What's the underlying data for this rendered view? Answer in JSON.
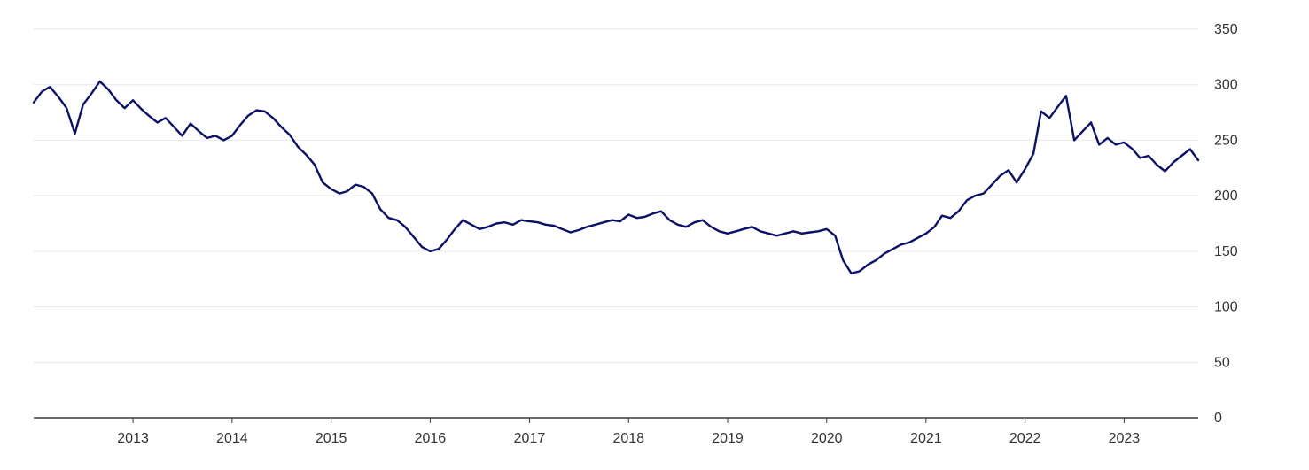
{
  "chart_data": {
    "type": "line",
    "title": "",
    "xlabel": "",
    "ylabel": "",
    "x_range": [
      "2012-01-01",
      "2023-10-01"
    ],
    "ylim": [
      0,
      350
    ],
    "y_ticks": [
      0,
      50,
      100,
      150,
      200,
      250,
      300,
      350
    ],
    "x_ticks": [
      "2013",
      "2014",
      "2015",
      "2016",
      "2017",
      "2018",
      "2019",
      "2020",
      "2021",
      "2022",
      "2023"
    ],
    "grid": "horizontal",
    "y_axis_side": "right",
    "line_color": "#0b1166",
    "series": [
      {
        "points": [
          [
            "2012-01-01",
            284
          ],
          [
            "2012-02-01",
            294
          ],
          [
            "2012-03-01",
            298
          ],
          [
            "2012-04-01",
            289
          ],
          [
            "2012-05-01",
            279
          ],
          [
            "2012-06-01",
            256
          ],
          [
            "2012-07-01",
            282
          ],
          [
            "2012-08-01",
            292
          ],
          [
            "2012-09-01",
            303
          ],
          [
            "2012-10-01",
            296
          ],
          [
            "2012-11-01",
            286
          ],
          [
            "2012-12-01",
            279
          ],
          [
            "2013-01-01",
            286
          ],
          [
            "2013-02-01",
            278
          ],
          [
            "2013-03-01",
            272
          ],
          [
            "2013-04-01",
            266
          ],
          [
            "2013-05-01",
            270
          ],
          [
            "2013-06-01",
            262
          ],
          [
            "2013-07-01",
            254
          ],
          [
            "2013-08-01",
            265
          ],
          [
            "2013-09-01",
            258
          ],
          [
            "2013-10-01",
            252
          ],
          [
            "2013-11-01",
            254
          ],
          [
            "2013-12-01",
            250
          ],
          [
            "2014-01-01",
            254
          ],
          [
            "2014-02-01",
            264
          ],
          [
            "2014-03-01",
            272
          ],
          [
            "2014-04-01",
            277
          ],
          [
            "2014-05-01",
            276
          ],
          [
            "2014-06-01",
            270
          ],
          [
            "2014-07-01",
            262
          ],
          [
            "2014-08-01",
            255
          ],
          [
            "2014-09-01",
            244
          ],
          [
            "2014-10-01",
            237
          ],
          [
            "2014-11-01",
            228
          ],
          [
            "2014-12-01",
            212
          ],
          [
            "2015-01-01",
            206
          ],
          [
            "2015-02-01",
            202
          ],
          [
            "2015-03-01",
            204
          ],
          [
            "2015-04-01",
            210
          ],
          [
            "2015-05-01",
            208
          ],
          [
            "2015-06-01",
            202
          ],
          [
            "2015-07-01",
            188
          ],
          [
            "2015-08-01",
            180
          ],
          [
            "2015-09-01",
            178
          ],
          [
            "2015-10-01",
            172
          ],
          [
            "2015-11-01",
            163
          ],
          [
            "2015-12-01",
            154
          ],
          [
            "2016-01-01",
            150
          ],
          [
            "2016-02-01",
            152
          ],
          [
            "2016-03-01",
            160
          ],
          [
            "2016-04-01",
            170
          ],
          [
            "2016-05-01",
            178
          ],
          [
            "2016-06-01",
            174
          ],
          [
            "2016-07-01",
            170
          ],
          [
            "2016-08-01",
            172
          ],
          [
            "2016-09-01",
            175
          ],
          [
            "2016-10-01",
            176
          ],
          [
            "2016-11-01",
            174
          ],
          [
            "2016-12-01",
            178
          ],
          [
            "2017-01-01",
            177
          ],
          [
            "2017-02-01",
            176
          ],
          [
            "2017-03-01",
            174
          ],
          [
            "2017-04-01",
            173
          ],
          [
            "2017-05-01",
            170
          ],
          [
            "2017-06-01",
            167
          ],
          [
            "2017-07-01",
            169
          ],
          [
            "2017-08-01",
            172
          ],
          [
            "2017-09-01",
            174
          ],
          [
            "2017-10-01",
            176
          ],
          [
            "2017-11-01",
            178
          ],
          [
            "2017-12-01",
            177
          ],
          [
            "2018-01-01",
            183
          ],
          [
            "2018-02-01",
            180
          ],
          [
            "2018-03-01",
            181
          ],
          [
            "2018-04-01",
            184
          ],
          [
            "2018-05-01",
            186
          ],
          [
            "2018-06-01",
            178
          ],
          [
            "2018-07-01",
            174
          ],
          [
            "2018-08-01",
            172
          ],
          [
            "2018-09-01",
            176
          ],
          [
            "2018-10-01",
            178
          ],
          [
            "2018-11-01",
            172
          ],
          [
            "2018-12-01",
            168
          ],
          [
            "2019-01-01",
            166
          ],
          [
            "2019-02-01",
            168
          ],
          [
            "2019-03-01",
            170
          ],
          [
            "2019-04-01",
            172
          ],
          [
            "2019-05-01",
            168
          ],
          [
            "2019-06-01",
            166
          ],
          [
            "2019-07-01",
            164
          ],
          [
            "2019-08-01",
            166
          ],
          [
            "2019-09-01",
            168
          ],
          [
            "2019-10-01",
            166
          ],
          [
            "2019-11-01",
            167
          ],
          [
            "2019-12-01",
            168
          ],
          [
            "2020-01-01",
            170
          ],
          [
            "2020-02-01",
            164
          ],
          [
            "2020-03-01",
            142
          ],
          [
            "2020-04-01",
            130
          ],
          [
            "2020-05-01",
            132
          ],
          [
            "2020-06-01",
            138
          ],
          [
            "2020-07-01",
            142
          ],
          [
            "2020-08-01",
            148
          ],
          [
            "2020-09-01",
            152
          ],
          [
            "2020-10-01",
            156
          ],
          [
            "2020-11-01",
            158
          ],
          [
            "2020-12-01",
            162
          ],
          [
            "2021-01-01",
            166
          ],
          [
            "2021-02-01",
            172
          ],
          [
            "2021-03-01",
            182
          ],
          [
            "2021-04-01",
            180
          ],
          [
            "2021-05-01",
            186
          ],
          [
            "2021-06-01",
            196
          ],
          [
            "2021-07-01",
            200
          ],
          [
            "2021-08-01",
            202
          ],
          [
            "2021-09-01",
            210
          ],
          [
            "2021-10-01",
            218
          ],
          [
            "2021-11-01",
            223
          ],
          [
            "2021-12-01",
            212
          ],
          [
            "2022-01-01",
            224
          ],
          [
            "2022-02-01",
            238
          ],
          [
            "2022-03-01",
            276
          ],
          [
            "2022-04-01",
            270
          ],
          [
            "2022-05-01",
            280
          ],
          [
            "2022-06-01",
            290
          ],
          [
            "2022-07-01",
            250
          ],
          [
            "2022-08-01",
            258
          ],
          [
            "2022-09-01",
            266
          ],
          [
            "2022-10-01",
            246
          ],
          [
            "2022-11-01",
            252
          ],
          [
            "2022-12-01",
            246
          ],
          [
            "2023-01-01",
            248
          ],
          [
            "2023-02-01",
            242
          ],
          [
            "2023-03-01",
            234
          ],
          [
            "2023-04-01",
            236
          ],
          [
            "2023-05-01",
            228
          ],
          [
            "2023-06-01",
            222
          ],
          [
            "2023-07-01",
            230
          ],
          [
            "2023-08-01",
            236
          ],
          [
            "2023-09-01",
            242
          ],
          [
            "2023-10-01",
            232
          ]
        ]
      }
    ]
  }
}
